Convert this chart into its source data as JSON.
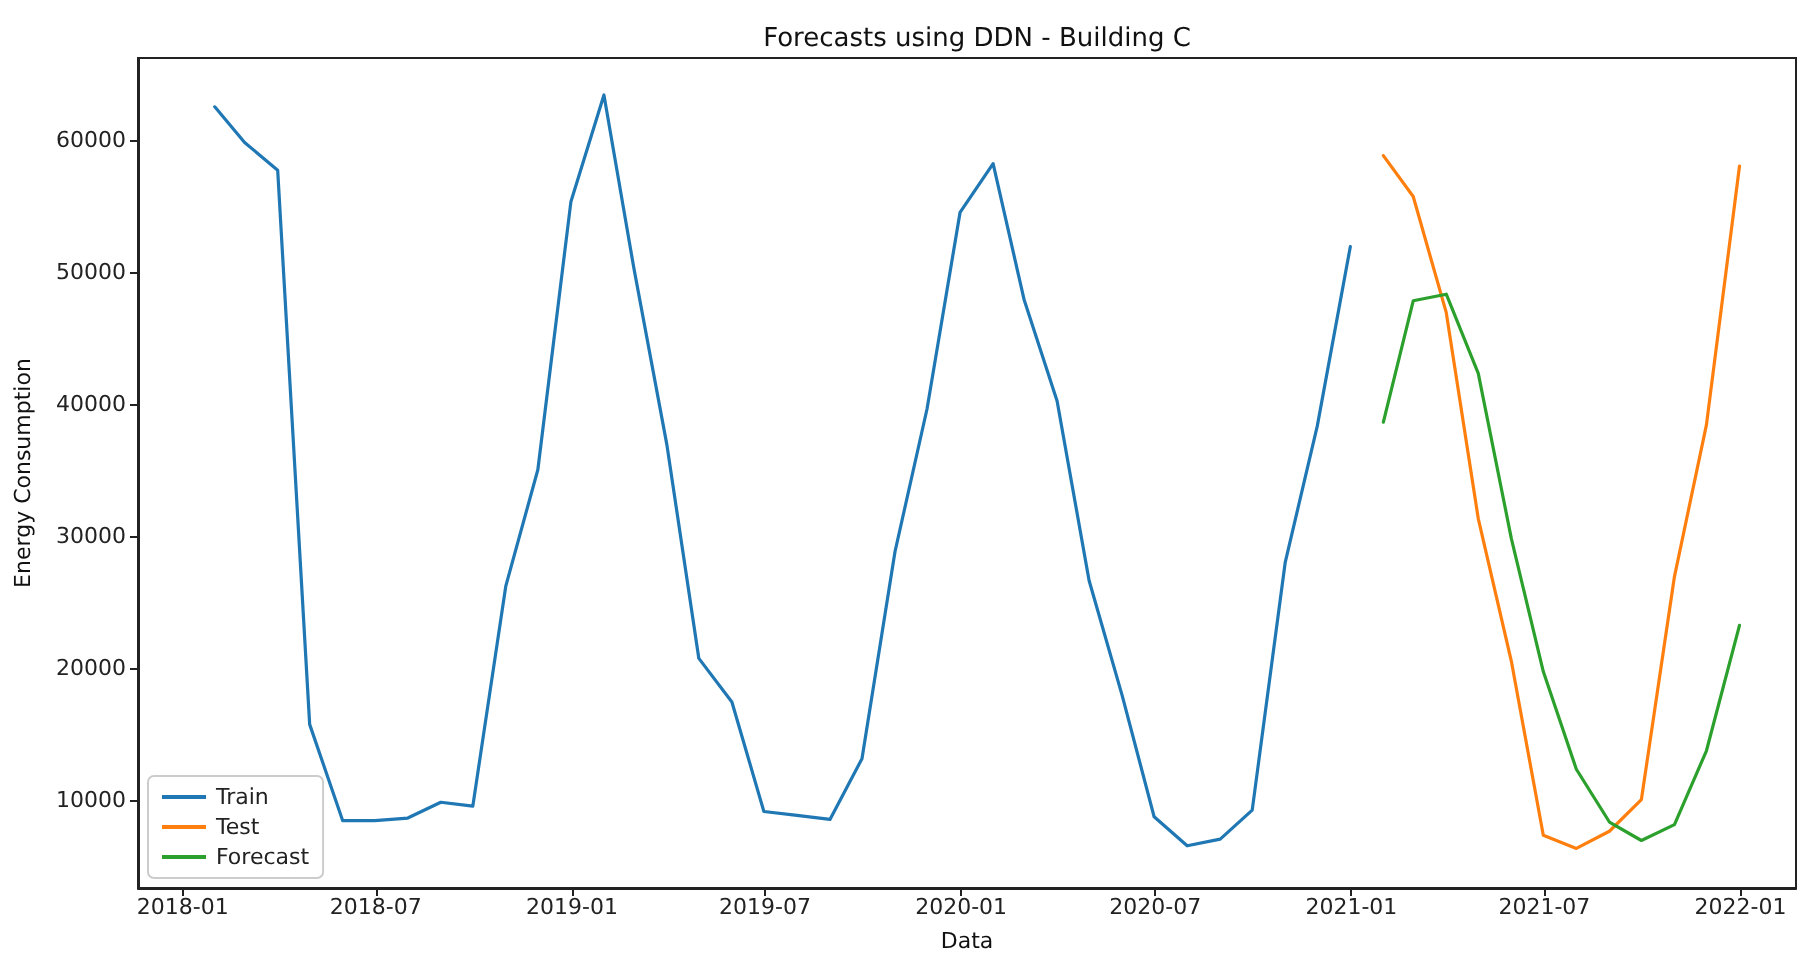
{
  "chart_data": {
    "type": "line",
    "title": "Forecasts using DDN - Building C",
    "xlabel": "Data",
    "ylabel": "Energy Consumption",
    "xlim": [
      "2017-11-20",
      "2022-02-22"
    ],
    "ylim": [
      3300,
      66200
    ],
    "xticks": [
      "2018-01",
      "2018-07",
      "2019-01",
      "2019-07",
      "2020-01",
      "2020-07",
      "2021-01",
      "2021-07",
      "2022-01"
    ],
    "yticks": [
      10000,
      20000,
      30000,
      40000,
      50000,
      60000
    ],
    "grid": false,
    "legend": "bottom left",
    "marker": "none",
    "line_style": "solid",
    "series": [
      {
        "name": "Train",
        "color": "#1f77b4",
        "x": [
          "2018-01-31",
          "2018-02-28",
          "2018-03-31",
          "2018-04-30",
          "2018-05-31",
          "2018-06-30",
          "2018-07-31",
          "2018-08-31",
          "2018-09-30",
          "2018-10-31",
          "2018-11-30",
          "2018-12-31",
          "2019-01-31",
          "2019-02-28",
          "2019-03-31",
          "2019-04-30",
          "2019-05-31",
          "2019-06-30",
          "2019-07-31",
          "2019-08-31",
          "2019-09-30",
          "2019-10-31",
          "2019-11-30",
          "2019-12-31",
          "2020-01-31",
          "2020-02-29",
          "2020-03-31",
          "2020-04-30",
          "2020-05-31",
          "2020-06-30",
          "2020-07-31",
          "2020-08-31",
          "2020-09-30",
          "2020-10-31",
          "2020-11-30",
          "2020-12-31"
        ],
        "values": [
          62500,
          59800,
          57700,
          15700,
          8400,
          8400,
          8600,
          9800,
          9500,
          26200,
          35000,
          55300,
          63400,
          50300,
          36900,
          20700,
          17400,
          9100,
          8800,
          8500,
          13100,
          28800,
          39600,
          54500,
          58200,
          47900,
          40200,
          26600,
          17900,
          8700,
          6500,
          7000,
          9200,
          28000,
          38300,
          51900
        ]
      },
      {
        "name": "Test",
        "color": "#ff7f0e",
        "x": [
          "2021-01-31",
          "2021-02-28",
          "2021-03-31",
          "2021-04-30",
          "2021-05-31",
          "2021-06-30",
          "2021-07-31",
          "2021-08-31",
          "2021-09-30",
          "2021-10-31",
          "2021-11-30",
          "2021-12-31"
        ],
        "values": [
          58800,
          55700,
          46900,
          31300,
          20500,
          7300,
          6300,
          7600,
          10000,
          26900,
          38400,
          58000
        ]
      },
      {
        "name": "Forecast",
        "color": "#2ca02c",
        "x": [
          "2021-01-31",
          "2021-02-28",
          "2021-03-31",
          "2021-04-30",
          "2021-05-31",
          "2021-06-30",
          "2021-07-31",
          "2021-08-31",
          "2021-09-30",
          "2021-10-31",
          "2021-11-30",
          "2021-12-31"
        ],
        "values": [
          38600,
          47800,
          48300,
          42300,
          29800,
          19700,
          12300,
          8300,
          6900,
          8100,
          13700,
          23200
        ]
      }
    ]
  }
}
